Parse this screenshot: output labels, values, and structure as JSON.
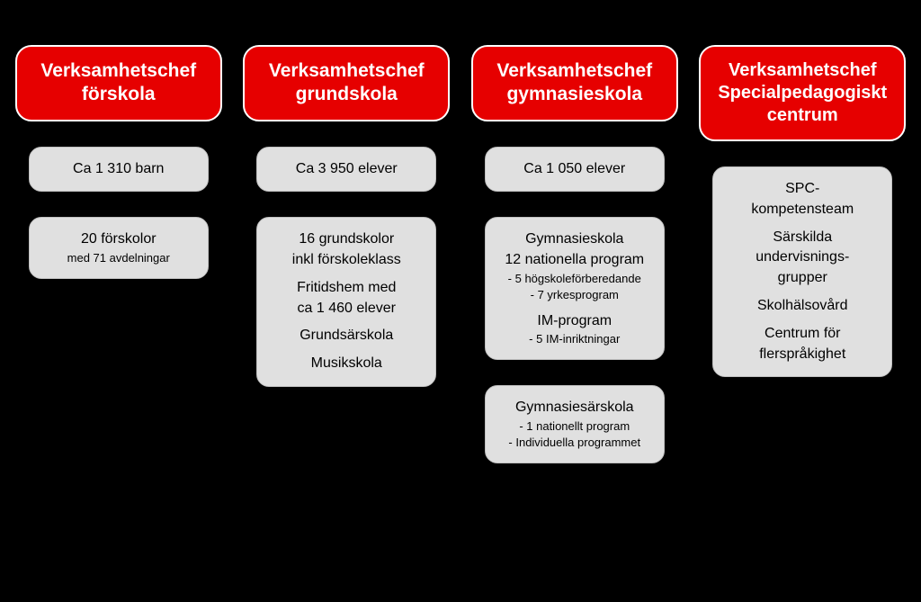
{
  "background_color": "#000000",
  "header_bg": "#e60000",
  "header_border": "#ffffff",
  "header_text_color": "#ffffff",
  "body_bg": "#e0e0e0",
  "body_text_color": "#000000",
  "columns": [
    {
      "header": [
        "Verksamhetschef",
        "förskola"
      ],
      "boxes": [
        {
          "lines": [
            {
              "t": "Ca 1 310 barn",
              "s": "line"
            }
          ]
        },
        {
          "lines": [
            {
              "t": "20 förskolor",
              "s": "line"
            },
            {
              "t": "med 71 avdelningar",
              "s": "sub"
            }
          ]
        }
      ]
    },
    {
      "header": [
        "Verksamhetschef",
        "grundskola"
      ],
      "boxes": [
        {
          "lines": [
            {
              "t": "Ca 3 950 elever",
              "s": "line"
            }
          ]
        },
        {
          "lines": [
            {
              "t": "16 grundskolor",
              "s": "line"
            },
            {
              "t": "inkl förskoleklass",
              "s": "line"
            },
            {
              "t": "",
              "s": "group"
            },
            {
              "t": "Fritidshem med",
              "s": "line"
            },
            {
              "t": "ca 1 460 elever",
              "s": "line"
            },
            {
              "t": "",
              "s": "group"
            },
            {
              "t": "Grundsärskola",
              "s": "line"
            },
            {
              "t": "",
              "s": "group"
            },
            {
              "t": "Musikskola",
              "s": "line"
            }
          ]
        }
      ]
    },
    {
      "header": [
        "Verksamhetschef",
        "gymnasieskola"
      ],
      "boxes": [
        {
          "lines": [
            {
              "t": "Ca 1 050 elever",
              "s": "line"
            }
          ]
        },
        {
          "lines": [
            {
              "t": "Gymnasieskola",
              "s": "line"
            },
            {
              "t": "12 nationella program",
              "s": "line"
            },
            {
              "t": "- 5 högskoleförberedande",
              "s": "sub"
            },
            {
              "t": "- 7 yrkesprogram",
              "s": "sub"
            },
            {
              "t": "",
              "s": "group"
            },
            {
              "t": "IM-program",
              "s": "line"
            },
            {
              "t": "- 5 IM-inriktningar",
              "s": "sub"
            }
          ]
        },
        {
          "lines": [
            {
              "t": "Gymnasiesärskola",
              "s": "line"
            },
            {
              "t": "- 1 nationellt program",
              "s": "sub"
            },
            {
              "t": "- Individuella programmet",
              "s": "sub"
            }
          ]
        }
      ]
    },
    {
      "header": [
        "Verksamhetschef",
        "Specialpedagogiskt",
        "centrum"
      ],
      "boxes": [
        {
          "lines": [
            {
              "t": "SPC-",
              "s": "line"
            },
            {
              "t": "kompetensteam",
              "s": "line"
            },
            {
              "t": "",
              "s": "group"
            },
            {
              "t": "Särskilda",
              "s": "line"
            },
            {
              "t": "undervisnings-",
              "s": "line"
            },
            {
              "t": "grupper",
              "s": "line"
            },
            {
              "t": "",
              "s": "group"
            },
            {
              "t": "Skolhälsovård",
              "s": "line"
            },
            {
              "t": "",
              "s": "group"
            },
            {
              "t": "Centrum för",
              "s": "line"
            },
            {
              "t": "flerspråkighet",
              "s": "line"
            }
          ]
        }
      ]
    }
  ]
}
